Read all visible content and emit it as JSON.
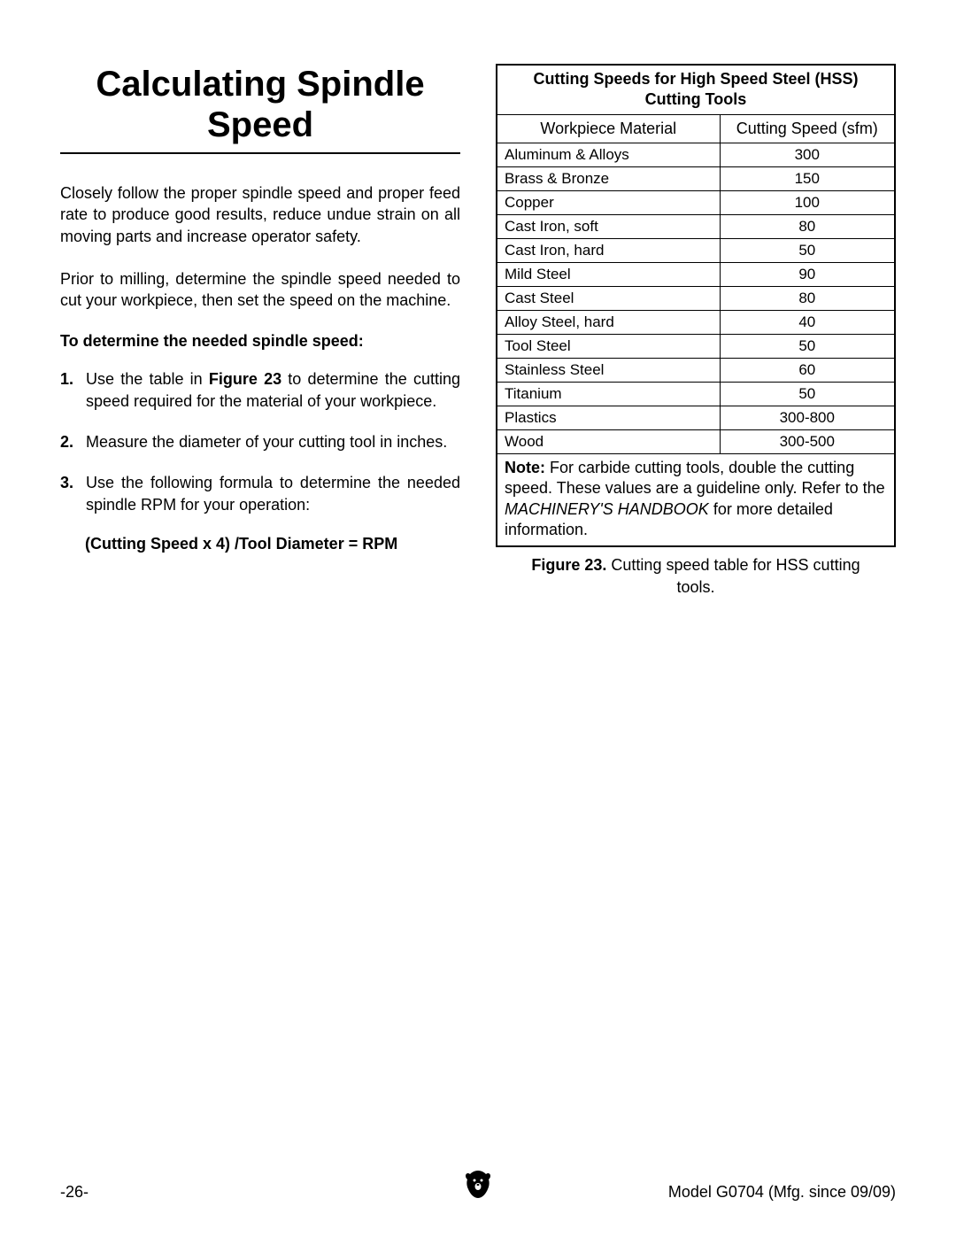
{
  "heading": "Calculating Spindle Speed",
  "paragraphs": [
    "Closely follow the proper spindle speed and proper feed rate to produce good results, reduce undue strain on all moving parts and increase operator safety.",
    "Prior to milling, determine the spindle speed needed to cut your workpiece, then set the speed on the machine."
  ],
  "sub_heading": "To determine the needed spindle speed:",
  "list": [
    {
      "num": "1.",
      "text_before": "Use the table in ",
      "bold": "Figure 23",
      "text_after": " to determine the cutting speed required for the material of your workpiece."
    },
    {
      "num": "2.",
      "text_before": "Measure the diameter of your cutting tool in inches.",
      "bold": "",
      "text_after": ""
    },
    {
      "num": "3.",
      "text_before": "Use the following formula to determine the needed spindle RPM for your operation:",
      "bold": "",
      "text_after": ""
    }
  ],
  "formula": "(Cutting Speed x 4) /Tool Diameter = RPM",
  "table": {
    "title": "Cutting Speeds for High Speed Steel (HSS) Cutting Tools",
    "col1": "Workpiece Material",
    "col2": "Cutting Speed (sfm)",
    "rows": [
      {
        "material": "Aluminum & Alloys",
        "speed": "300"
      },
      {
        "material": "Brass & Bronze",
        "speed": "150"
      },
      {
        "material": "Copper",
        "speed": "100"
      },
      {
        "material": "Cast Iron, soft",
        "speed": "80"
      },
      {
        "material": "Cast Iron, hard",
        "speed": "50"
      },
      {
        "material": "Mild Steel",
        "speed": "90"
      },
      {
        "material": "Cast Steel",
        "speed": "80"
      },
      {
        "material": "Alloy Steel, hard",
        "speed": "40"
      },
      {
        "material": "Tool Steel",
        "speed": "50"
      },
      {
        "material": "Stainless Steel",
        "speed": "60"
      },
      {
        "material": "Titanium",
        "speed": "50"
      },
      {
        "material": "Plastics",
        "speed": "300-800"
      },
      {
        "material": "Wood",
        "speed": "300-500"
      }
    ],
    "note_label": "Note:",
    "note_text_1": " For carbide cutting tools, double the cutting speed. These values are a guideline only. Refer to the ",
    "note_italic": "MACHINERY'S HANDBOOK",
    "note_text_2": " for more detailed information."
  },
  "figure_caption": {
    "label": "Figure 23.",
    "text": " Cutting speed table for HSS cutting tools."
  },
  "footer": {
    "page": "-26-",
    "model": "Model G0704 (Mfg. since 09/09)"
  }
}
